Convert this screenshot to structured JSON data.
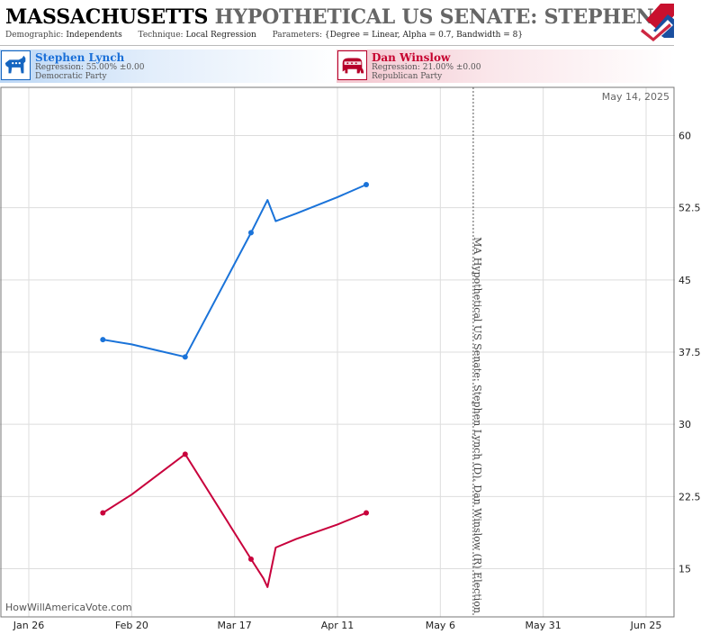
{
  "header": {
    "title_state": "MASSACHUSETTS",
    "title_rest": "HYPOTHETICAL US SENATE: STEPHEN LYNCH",
    "demographic_label": "Demographic:",
    "demographic_value": "Independents",
    "technique_label": "Technique:",
    "technique_value": "Local Regression",
    "parameters_label": "Parameters:",
    "parameters_value": "{Degree = Linear, Alpha = 0.7, Bandwidth = 8}"
  },
  "candidates": [
    {
      "name": "Stephen Lynch",
      "regression": "Regression: 55.00% ±0.00",
      "party": "Democratic Party",
      "color": "#1a73d9"
    },
    {
      "name": "Dan Winslow",
      "regression": "Regression: 21.00% ±0.00",
      "party": "Republican Party",
      "color": "#c8003c"
    }
  ],
  "watermark": "HowWillAmericaVote.com",
  "current_date_label": "May 14, 2025",
  "chart_data": {
    "type": "line",
    "y_axis_label": "MA Hypothetical US Senate: Stephen Lynch (D), Dan Winslow (R) Election",
    "ylim": [
      10,
      65
    ],
    "yticks": [
      15,
      22.5,
      30,
      37.5,
      45,
      52.5,
      60
    ],
    "y_tick_labels": [
      "15",
      "22.5",
      "30",
      "37.5",
      "45",
      "52.5",
      "60"
    ],
    "xlim": [
      "2025-01-19",
      "2025-07-02"
    ],
    "x_ticks": [
      {
        "date": "2025-01-26",
        "label": "Jan 26"
      },
      {
        "date": "2025-02-20",
        "label": "Feb 20"
      },
      {
        "date": "2025-03-17",
        "label": "Mar 17"
      },
      {
        "date": "2025-04-11",
        "label": "Apr 11"
      },
      {
        "date": "2025-05-06",
        "label": "May 6"
      },
      {
        "date": "2025-05-31",
        "label": "May 31"
      },
      {
        "date": "2025-06-25",
        "label": "Jun 25"
      }
    ],
    "current_date": "2025-05-14",
    "grid": true,
    "series": [
      {
        "name": "Stephen Lynch",
        "color": "#1a73d9",
        "line": [
          [
            "2025-02-13",
            38.8
          ],
          [
            "2025-02-20",
            38.3
          ],
          [
            "2025-02-26",
            37.7
          ],
          [
            "2025-03-05",
            37.0
          ],
          [
            "2025-03-21",
            49.9
          ],
          [
            "2025-03-25",
            53.3
          ],
          [
            "2025-03-27",
            51.1
          ],
          [
            "2025-04-01",
            51.9
          ],
          [
            "2025-04-11",
            53.6
          ],
          [
            "2025-04-18",
            54.9
          ]
        ],
        "points": [
          [
            "2025-02-13",
            38.8
          ],
          [
            "2025-03-05",
            37.0
          ],
          [
            "2025-03-21",
            49.9
          ],
          [
            "2025-04-18",
            54.9
          ]
        ]
      },
      {
        "name": "Dan Winslow",
        "color": "#c8003c",
        "line": [
          [
            "2025-02-13",
            20.8
          ],
          [
            "2025-02-20",
            22.7
          ],
          [
            "2025-03-05",
            26.9
          ],
          [
            "2025-03-21",
            16.0
          ],
          [
            "2025-03-24",
            14.0
          ],
          [
            "2025-03-25",
            13.1
          ],
          [
            "2025-03-27",
            17.2
          ],
          [
            "2025-04-01",
            18.1
          ],
          [
            "2025-04-11",
            19.6
          ],
          [
            "2025-04-18",
            20.8
          ]
        ],
        "points": [
          [
            "2025-02-13",
            20.8
          ],
          [
            "2025-03-05",
            26.9
          ],
          [
            "2025-03-21",
            16.0
          ],
          [
            "2025-04-18",
            20.8
          ]
        ]
      }
    ]
  }
}
